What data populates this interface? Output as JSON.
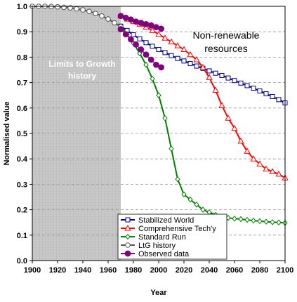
{
  "chart_data": {
    "type": "line",
    "title": "",
    "xlabel": "Year",
    "ylabel": "Normalised value",
    "xlim": [
      1900,
      2100
    ],
    "ylim": [
      0,
      1.0
    ],
    "xticks": [
      "1900",
      "1920",
      "1940",
      "1960",
      "1980",
      "2000",
      "2020",
      "2040",
      "2060",
      "2080",
      "2100"
    ],
    "yticks": [
      "0.0",
      "0.1",
      "0.2",
      "0.3",
      "0.4",
      "0.5",
      "0.6",
      "0.7",
      "0.8",
      "0.9",
      "1.0"
    ],
    "grid": "horizontal dashed",
    "legend_position": "bottom-center",
    "shaded_region": {
      "x": [
        1900,
        1970
      ],
      "label_lines": [
        "Limits to Growth",
        "history"
      ]
    },
    "annotation_lines": [
      "Non-renewable",
      "resources"
    ],
    "series": [
      {
        "name": "Stabilized World",
        "color": "#000080",
        "marker": "square",
        "x": [
          1970,
          1975,
          1980,
          1985,
          1990,
          1995,
          2000,
          2005,
          2010,
          2015,
          2020,
          2025,
          2030,
          2035,
          2040,
          2045,
          2050,
          2055,
          2060,
          2065,
          2070,
          2075,
          2080,
          2085,
          2090,
          2095,
          2100
        ],
        "y": [
          0.922,
          0.905,
          0.888,
          0.872,
          0.857,
          0.843,
          0.83,
          0.818,
          0.806,
          0.795,
          0.785,
          0.775,
          0.765,
          0.756,
          0.746,
          0.737,
          0.728,
          0.718,
          0.708,
          0.698,
          0.688,
          0.678,
          0.667,
          0.656,
          0.645,
          0.633,
          0.62
        ]
      },
      {
        "name": "Comprehensive Tech'y",
        "color": "#ff0000",
        "marker": "triangle",
        "x": [
          1970,
          1975,
          1980,
          1985,
          1990,
          1995,
          2000,
          2005,
          2010,
          2015,
          2020,
          2025,
          2030,
          2035,
          2040,
          2045,
          2050,
          2055,
          2060,
          2065,
          2070,
          2075,
          2080,
          2085,
          2090,
          2095,
          2100
        ],
        "y": [
          0.962,
          0.95,
          0.94,
          0.93,
          0.918,
          0.905,
          0.89,
          0.875,
          0.86,
          0.845,
          0.83,
          0.81,
          0.79,
          0.76,
          0.72,
          0.67,
          0.61,
          0.56,
          0.52,
          0.47,
          0.43,
          0.4,
          0.38,
          0.36,
          0.35,
          0.34,
          0.325
        ]
      },
      {
        "name": "Standard Run",
        "color": "#008000",
        "marker": "diamond",
        "x": [
          1970,
          1975,
          1980,
          1985,
          1990,
          1995,
          2000,
          2005,
          2010,
          2015,
          2020,
          2025,
          2030,
          2035,
          2040,
          2045,
          2050,
          2055,
          2060,
          2065,
          2070,
          2075,
          2080,
          2085,
          2090,
          2095,
          2100
        ],
        "y": [
          0.92,
          0.89,
          0.855,
          0.815,
          0.77,
          0.715,
          0.65,
          0.56,
          0.44,
          0.32,
          0.26,
          0.24,
          0.22,
          0.2,
          0.19,
          0.18,
          0.172,
          0.168,
          0.165,
          0.163,
          0.16,
          0.157,
          0.155,
          0.153,
          0.151,
          0.15,
          0.148
        ]
      },
      {
        "name": "LtG history",
        "color": "#555555",
        "marker": "circle",
        "x": [
          1900,
          1905,
          1910,
          1915,
          1920,
          1925,
          1930,
          1935,
          1940,
          1945,
          1950,
          1955,
          1960,
          1965,
          1970
        ],
        "y": [
          1.0,
          1.0,
          1.0,
          0.999,
          0.998,
          0.996,
          0.994,
          0.99,
          0.986,
          0.98,
          0.972,
          0.962,
          0.95,
          0.935,
          0.92
        ]
      },
      {
        "name": "Observed data",
        "color": "#800080",
        "marker": "filled-circle",
        "x": [
          1970,
          1974,
          1978,
          1982,
          1986,
          1990,
          1994,
          1998,
          2002
        ],
        "y": [
          0.962,
          0.955,
          0.948,
          0.94,
          0.935,
          0.93,
          0.925,
          0.918,
          0.912
        ]
      },
      {
        "name": "",
        "color": "#800080",
        "marker": "filled-circle",
        "x": [
          1970,
          1974,
          1978,
          1982,
          1986,
          1990,
          1994,
          1998,
          2002
        ],
        "y": [
          0.91,
          0.89,
          0.87,
          0.85,
          0.83,
          0.81,
          0.79,
          0.77,
          0.76
        ]
      }
    ]
  }
}
